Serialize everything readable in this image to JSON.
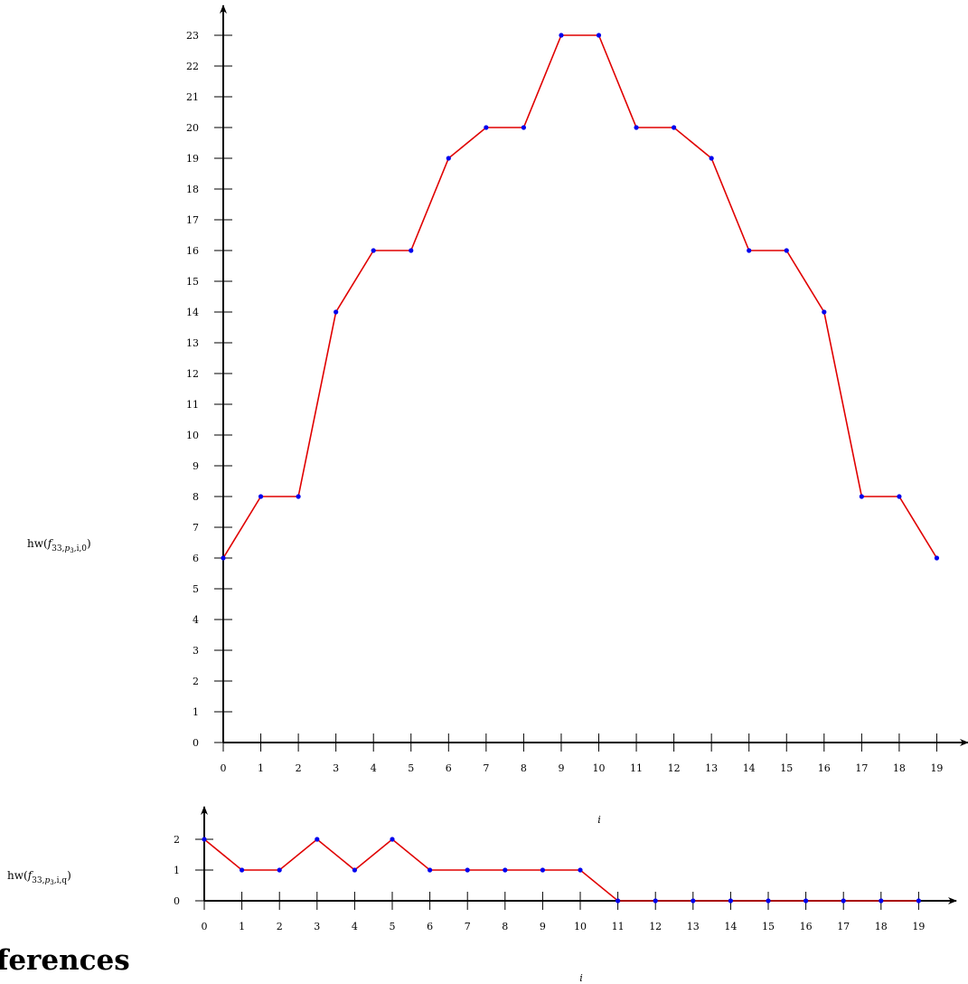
{
  "chart_data": [
    {
      "type": "line",
      "ylabel": {
        "main": "hw(",
        "f": "f",
        "sub": "33,",
        "p": "p",
        "psub": "3",
        "rest": ",i,0)"
      },
      "xlabel": "i",
      "x": [
        0,
        1,
        2,
        3,
        4,
        5,
        6,
        7,
        8,
        9,
        10,
        11,
        12,
        13,
        14,
        15,
        16,
        17,
        18,
        19
      ],
      "series": [
        {
          "values": [
            6,
            8,
            8,
            14,
            16,
            16,
            19,
            20,
            20,
            23,
            23,
            20,
            20,
            19,
            16,
            16,
            14,
            8,
            8,
            6
          ]
        }
      ],
      "xlim": [
        0,
        19
      ],
      "ylim": [
        0,
        23
      ],
      "yticks": [
        0,
        1,
        2,
        3,
        4,
        5,
        6,
        7,
        8,
        9,
        10,
        11,
        12,
        13,
        14,
        15,
        16,
        17,
        18,
        19,
        20,
        21,
        22,
        23
      ],
      "line_color": "#e00000",
      "marker_color": "#0000ee",
      "grid": false
    },
    {
      "type": "line",
      "ylabel": {
        "main": "hw(",
        "f": "f",
        "sub": "33,",
        "p": "p",
        "psub": "3",
        "rest": ",i,q)"
      },
      "xlabel": "i",
      "x": [
        0,
        1,
        2,
        3,
        4,
        5,
        6,
        7,
        8,
        9,
        10,
        11,
        12,
        13,
        14,
        15,
        16,
        17,
        18,
        19
      ],
      "series": [
        {
          "values": [
            2,
            1,
            1,
            2,
            1,
            2,
            1,
            1,
            1,
            1,
            1,
            0,
            0,
            0,
            0,
            0,
            0,
            0,
            0,
            0
          ]
        }
      ],
      "xlim": [
        0,
        19
      ],
      "ylim": [
        0,
        2
      ],
      "yticks": [
        0,
        1,
        2
      ],
      "line_color": "#e00000",
      "marker_color": "#0000ee",
      "grid": false
    }
  ],
  "heading_fragment": "ferences"
}
